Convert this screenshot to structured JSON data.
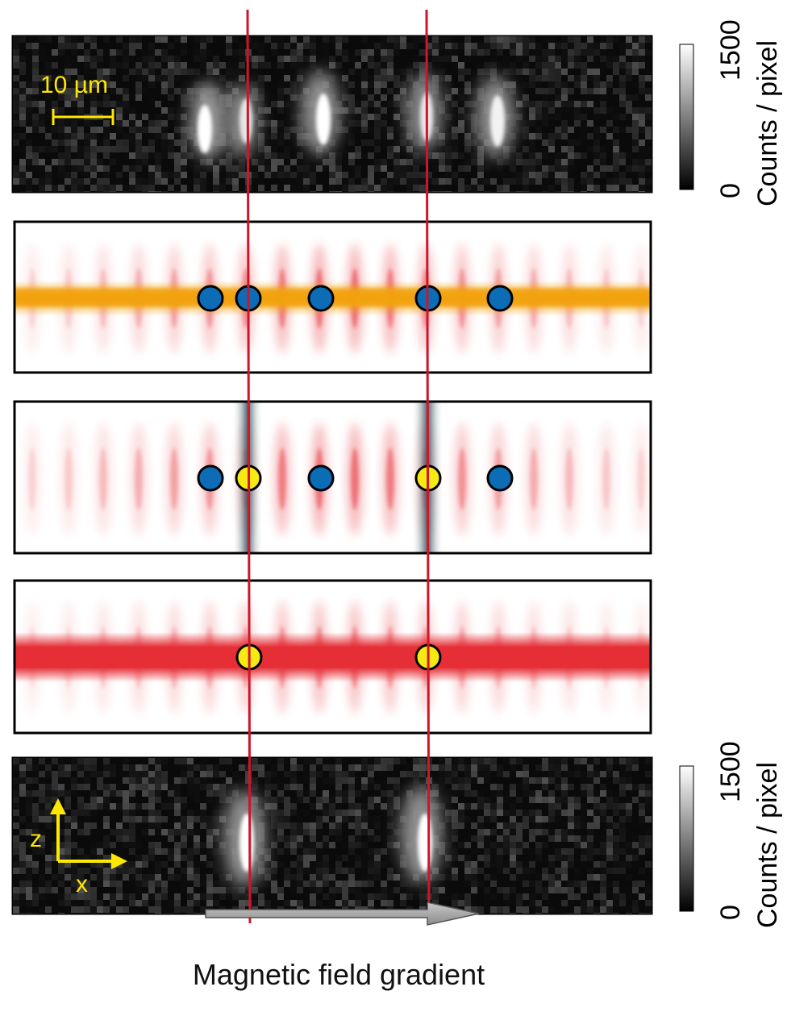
{
  "scale_bar": {
    "label": "10 µm"
  },
  "colorbar_top": {
    "max_label": "1500",
    "min_label": "0",
    "unit_label": "Counts / pixel"
  },
  "colorbar_bottom": {
    "max_label": "1500",
    "min_label": "0",
    "unit_label": "Counts / pixel"
  },
  "axes_marker": {
    "z_label": "z",
    "x_label": "x"
  },
  "gradient_arrow": {
    "label": "Magnetic field gradient"
  },
  "colors": {
    "red_line": "#d0142a",
    "orange_beam": "#f2a20a",
    "red_beam": "#e52e36",
    "blue_atom": "#0c6cb5",
    "yellow_atom": "#f7ea14",
    "annotation_yellow": "#ffe800"
  },
  "panels": [
    {
      "name": "top-camera-image",
      "type": "fluorescence-image",
      "atom_count": 4
    },
    {
      "name": "lattice-orange-panel",
      "atoms": [
        "blue",
        "blue",
        "blue",
        "blue",
        "blue"
      ]
    },
    {
      "name": "lattice-resonance-panel",
      "atoms": [
        "blue",
        "yellow",
        "blue",
        "yellow",
        "blue"
      ]
    },
    {
      "name": "lattice-red-panel",
      "atoms": [
        "yellow",
        "yellow"
      ]
    },
    {
      "name": "bottom-camera-image",
      "type": "fluorescence-image",
      "atom_count": 2
    }
  ]
}
